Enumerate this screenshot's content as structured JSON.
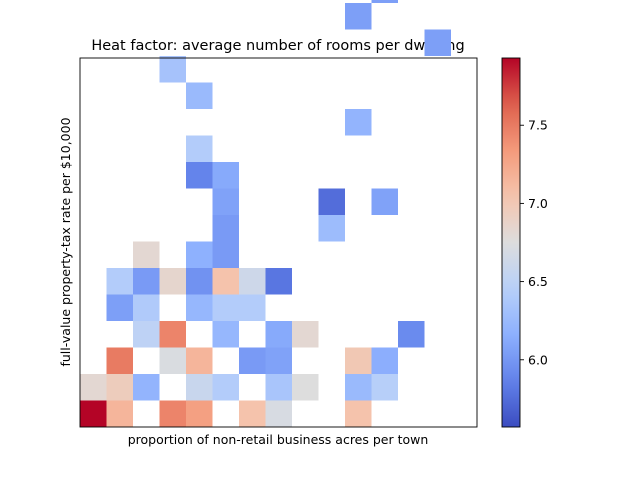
{
  "chart_data": {
    "type": "heatmap",
    "title": "Heat factor: average number of rooms per dwelling",
    "xlabel": "proportion of non-retail business acres per town",
    "ylabel": "full-value property-tax rate per $10,000",
    "grid": false,
    "legend": "colorbar-right",
    "xbins": 15,
    "ybins": 14,
    "colormap": "coolwarm",
    "vmin": 5.57,
    "vmax": 7.93,
    "colorbar_ticks": [
      "6.0",
      "6.5",
      "7.0",
      "7.5"
    ],
    "colorbar_tick_values": [
      6.0,
      6.5,
      7.0,
      7.5
    ],
    "cells": [
      {
        "col": 14,
        "row": 13,
        "value": 5.62
      },
      {
        "col": 0,
        "row": 12,
        "value": 5.95
      },
      {
        "col": 11,
        "row": 11,
        "value": 6.05
      },
      {
        "col": 10,
        "row": 10,
        "value": 6.05
      },
      {
        "col": 13,
        "row": 9,
        "value": 6.05
      },
      {
        "col": 3,
        "row": 8,
        "value": 6.33
      },
      {
        "col": 4,
        "row": 7,
        "value": 6.25
      },
      {
        "col": 10,
        "row": 6,
        "value": 6.2
      },
      {
        "col": 4,
        "row": 5,
        "value": 6.42
      },
      {
        "col": 4,
        "row": 4,
        "value": 5.88
      },
      {
        "col": 5,
        "row": 4,
        "value": 6.12
      },
      {
        "col": 5,
        "row": 3,
        "value": 6.07
      },
      {
        "col": 9,
        "row": 3,
        "value": 5.75
      },
      {
        "col": 11,
        "row": 3,
        "value": 6.07
      },
      {
        "col": 5,
        "row": 2,
        "value": 6.02
      },
      {
        "col": 9,
        "row": 2,
        "value": 6.27
      },
      {
        "col": 2,
        "row": 1,
        "value": 6.82
      },
      {
        "col": 4,
        "row": 1,
        "value": 6.17
      },
      {
        "col": 5,
        "row": 1,
        "value": 6.02
      },
      {
        "col": 1,
        "row": 0,
        "value": 6.42
      },
      {
        "col": 2,
        "row": 0,
        "value": 6.02
      },
      {
        "col": 3,
        "row": 0,
        "value": 6.85
      },
      {
        "col": 4,
        "row": 0,
        "value": 5.97
      },
      {
        "col": 5,
        "row": 0,
        "value": 7.05
      },
      {
        "col": 6,
        "row": 0,
        "value": 6.62
      },
      {
        "col": 7,
        "row": 0,
        "value": 5.8
      },
      {
        "col": 1,
        "row": -1,
        "value": 6.05
      },
      {
        "col": 2,
        "row": -1,
        "value": 6.4
      },
      {
        "col": 4,
        "row": -1,
        "value": 6.22
      },
      {
        "col": 5,
        "row": -1,
        "value": 6.42
      },
      {
        "col": 6,
        "row": -1,
        "value": 6.42
      },
      {
        "col": 2,
        "row": -2,
        "value": 6.5
      },
      {
        "col": 3,
        "row": -2,
        "value": 7.45
      },
      {
        "col": 5,
        "row": -2,
        "value": 6.22
      },
      {
        "col": 7,
        "row": -2,
        "value": 6.12
      },
      {
        "col": 8,
        "row": -2,
        "value": 6.82
      },
      {
        "col": 12,
        "row": -2,
        "value": 5.92
      },
      {
        "col": 1,
        "row": -3,
        "value": 7.5
      },
      {
        "col": 3,
        "row": -3,
        "value": 6.72
      },
      {
        "col": 4,
        "row": -3,
        "value": 7.15
      },
      {
        "col": 6,
        "row": -3,
        "value": 6.02
      },
      {
        "col": 7,
        "row": -3,
        "value": 6.07
      },
      {
        "col": 10,
        "row": -3,
        "value": 7.0
      },
      {
        "col": 11,
        "row": -3,
        "value": 6.15
      },
      {
        "col": 0,
        "row": -4,
        "value": 6.82
      },
      {
        "col": 1,
        "row": -4,
        "value": 6.95
      },
      {
        "col": 2,
        "row": -4,
        "value": 6.2
      },
      {
        "col": 4,
        "row": -4,
        "value": 6.58
      },
      {
        "col": 5,
        "row": -4,
        "value": 6.42
      },
      {
        "col": 7,
        "row": -4,
        "value": 6.35
      },
      {
        "col": 8,
        "row": -4,
        "value": 6.75
      },
      {
        "col": 10,
        "row": -4,
        "value": 6.25
      },
      {
        "col": 11,
        "row": -4,
        "value": 6.45
      },
      {
        "col": 0,
        "row": -5,
        "value": 7.93
      },
      {
        "col": 1,
        "row": -5,
        "value": 7.15
      },
      {
        "col": 3,
        "row": -5,
        "value": 7.45
      },
      {
        "col": 4,
        "row": -5,
        "value": 7.3
      },
      {
        "col": 6,
        "row": -5,
        "value": 7.05
      },
      {
        "col": 7,
        "row": -5,
        "value": 6.7
      },
      {
        "col": 10,
        "row": -5,
        "value": 7.05
      }
    ]
  }
}
